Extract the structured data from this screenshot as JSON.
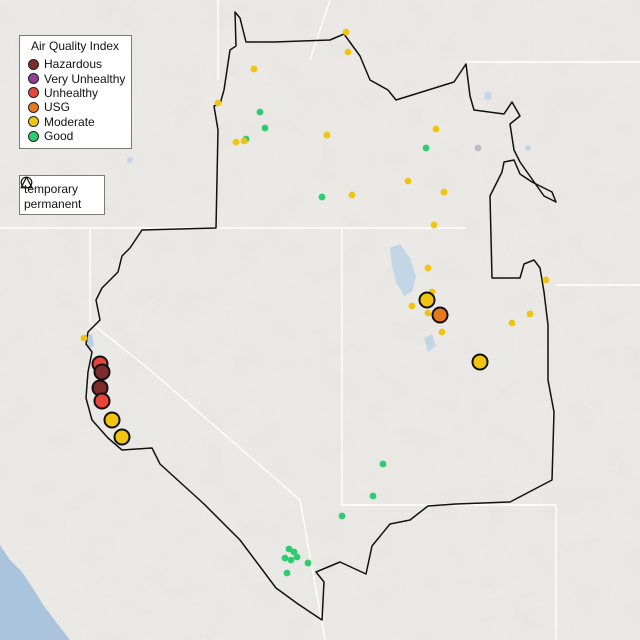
{
  "legend": {
    "title": "Air Quality Index",
    "categories": [
      {
        "key": "hazardous",
        "label": "Hazardous",
        "color": "#7e2b2b"
      },
      {
        "key": "very_unhealthy",
        "label": "Very Unhealthy",
        "color": "#8f3f97"
      },
      {
        "key": "unhealthy",
        "label": "Unhealthy",
        "color": "#e8453c"
      },
      {
        "key": "usg",
        "label": "USG",
        "color": "#e8771e"
      },
      {
        "key": "moderate",
        "label": "Moderate",
        "color": "#f1c40f"
      },
      {
        "key": "good",
        "label": "Good",
        "color": "#2ecc71"
      }
    ]
  },
  "monitor_types": [
    {
      "label": "temporary",
      "shape": "circle"
    },
    {
      "label": "permanent",
      "shape": "triangle"
    }
  ],
  "colors": {
    "background": "#e9e7e3",
    "terrain_shadow": "#d6d3ce",
    "water": "#b8d0e3",
    "ocean": "#a9c4dc",
    "state_border": "#ffffff",
    "region_outline": "#111111"
  }
}
